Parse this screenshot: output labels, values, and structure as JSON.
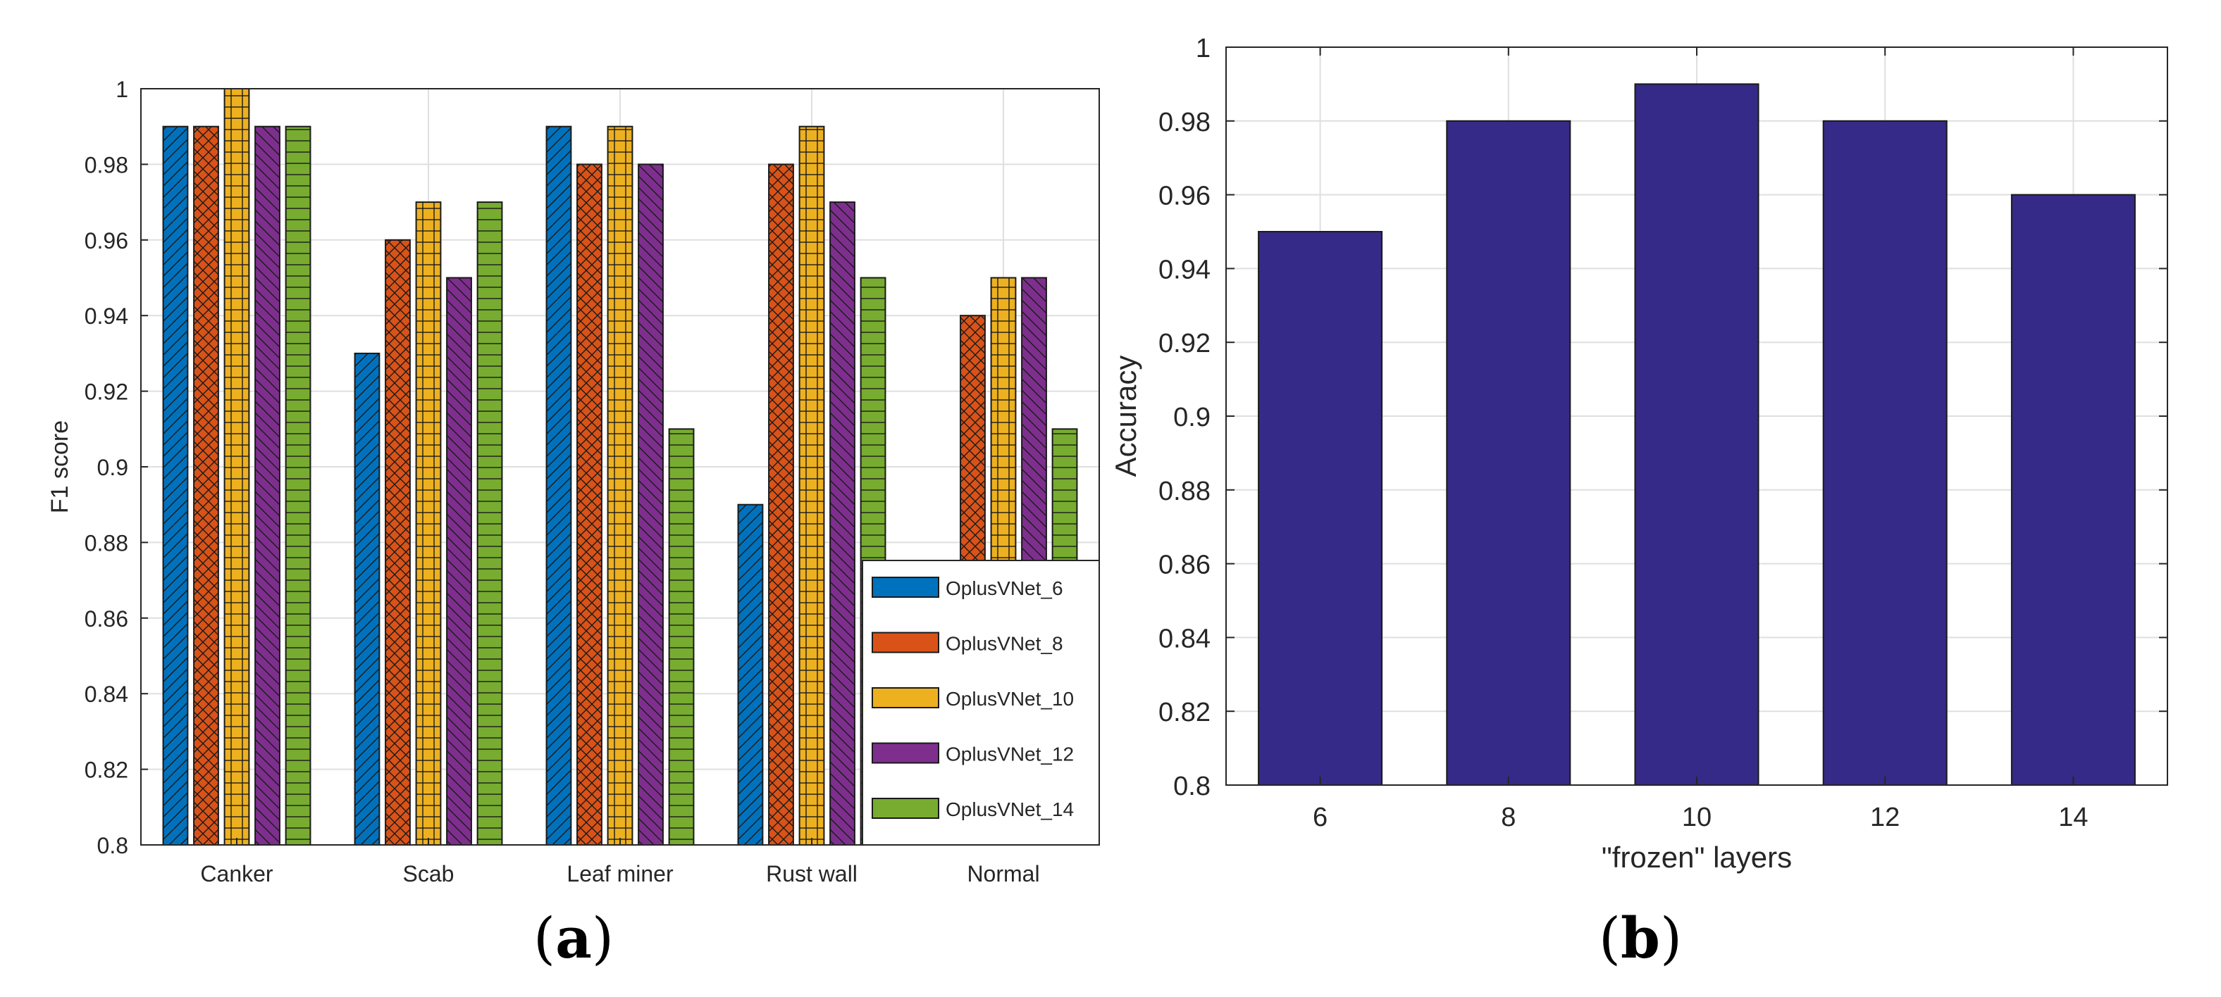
{
  "chart_data": [
    {
      "type": "bar",
      "panel": "(a)",
      "panel_letter": "a",
      "title": "",
      "xlabel": "",
      "ylabel": "F1 score",
      "ylim": [
        0.8,
        1.0
      ],
      "yticks": [
        0.8,
        0.82,
        0.84,
        0.86,
        0.88,
        0.9,
        0.92,
        0.94,
        0.96,
        0.98,
        1.0
      ],
      "ytick_labels": [
        "0.8",
        "0.82",
        "0.84",
        "0.86",
        "0.88",
        "0.9",
        "0.92",
        "0.94",
        "0.96",
        "0.98",
        "1"
      ],
      "grid": true,
      "legend_position": "bottom-right",
      "categories": [
        "Canker",
        "Scab",
        "Leaf miner",
        "Rust wall",
        "Normal"
      ],
      "series": [
        {
          "name": "OplusVNet_6",
          "color": "#0072BD",
          "hatch": "diagonal",
          "values": [
            0.99,
            0.93,
            0.99,
            0.89,
            0.8
          ]
        },
        {
          "name": "OplusVNet_8",
          "color": "#D95319",
          "hatch": "crosshatch",
          "values": [
            0.99,
            0.96,
            0.98,
            0.98,
            0.94
          ]
        },
        {
          "name": "OplusVNet_10",
          "color": "#EDB120",
          "hatch": "grid",
          "values": [
            1.0,
            0.97,
            0.99,
            0.99,
            0.95
          ]
        },
        {
          "name": "OplusVNet_12",
          "color": "#7E2F8E",
          "hatch": "backdiagonal",
          "values": [
            0.99,
            0.95,
            0.98,
            0.97,
            0.95
          ]
        },
        {
          "name": "OplusVNet_14",
          "color": "#77AC30",
          "hatch": "horizontal",
          "values": [
            0.99,
            0.97,
            0.91,
            0.95,
            0.91
          ]
        }
      ]
    },
    {
      "type": "bar",
      "panel": "(b)",
      "panel_letter": "b",
      "title": "",
      "xlabel": "\"frozen\" layers",
      "ylabel": "Accuracy",
      "ylim": [
        0.8,
        1.0
      ],
      "yticks": [
        0.8,
        0.82,
        0.84,
        0.86,
        0.88,
        0.9,
        0.92,
        0.94,
        0.96,
        0.98,
        1.0
      ],
      "ytick_labels": [
        "0.8",
        "0.82",
        "0.84",
        "0.86",
        "0.88",
        "0.9",
        "0.92",
        "0.94",
        "0.96",
        "0.98",
        "1"
      ],
      "grid": true,
      "categories": [
        "6",
        "8",
        "10",
        "12",
        "14"
      ],
      "values": [
        0.95,
        0.98,
        0.99,
        0.98,
        0.96
      ],
      "color": "#352A87"
    }
  ]
}
